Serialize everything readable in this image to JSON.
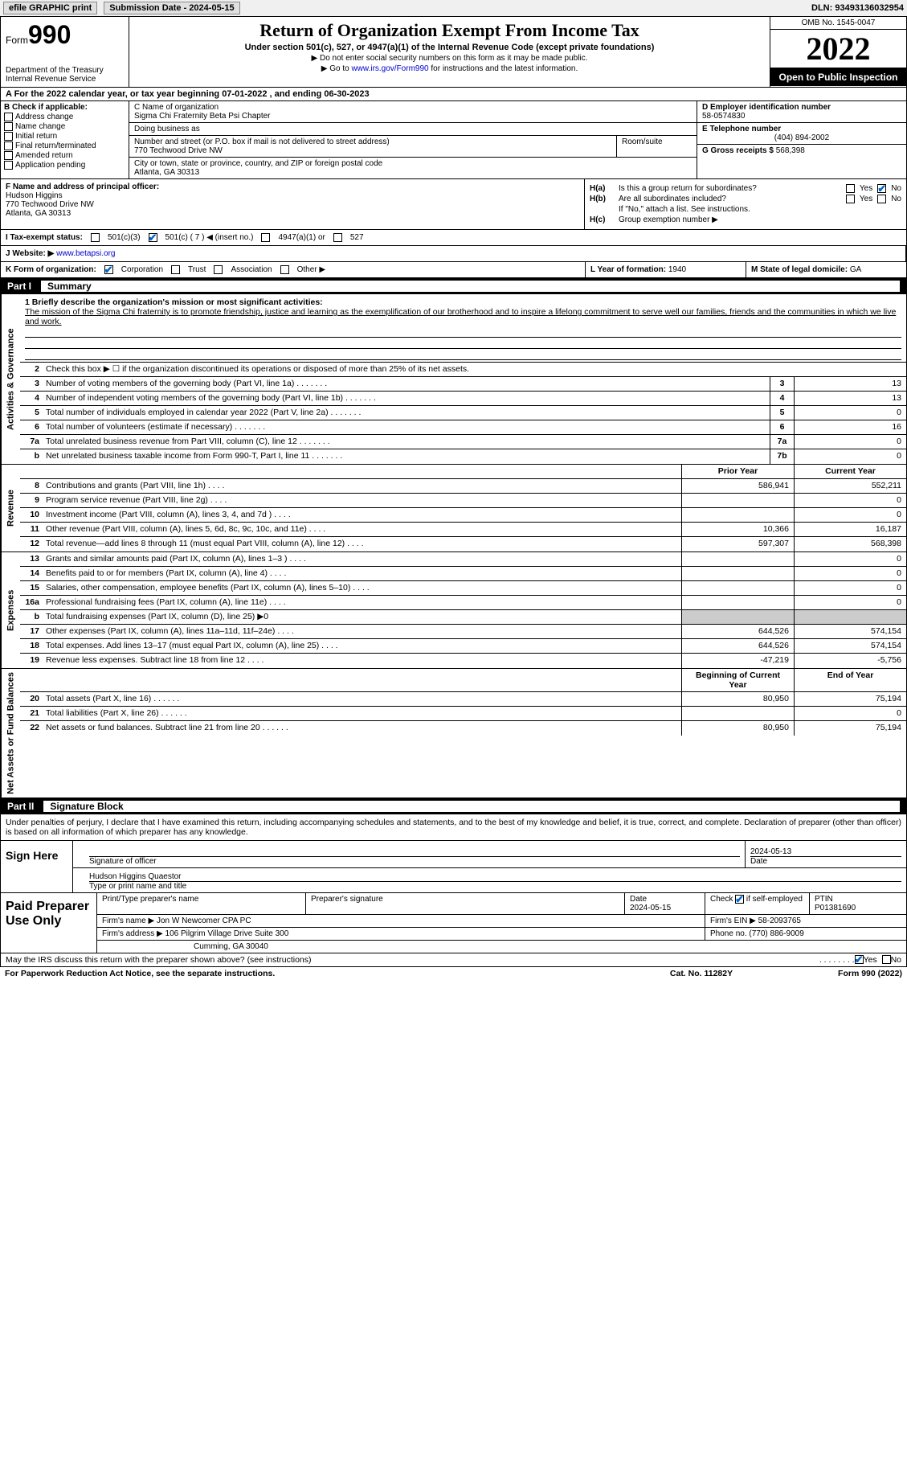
{
  "topbar": {
    "efile_label": "efile GRAPHIC print",
    "sub_date_label": "Submission Date - 2024-05-15",
    "dln_label": "DLN: 93493136032954"
  },
  "header": {
    "form_label": "Form",
    "form_number": "990",
    "dept": "Department of the Treasury\nInternal Revenue Service",
    "title": "Return of Organization Exempt From Income Tax",
    "subtitle": "Under section 501(c), 527, or 4947(a)(1) of the Internal Revenue Code (except private foundations)",
    "note1": "▶ Do not enter social security numbers on this form as it may be made public.",
    "note2_pre": "▶ Go to ",
    "note2_link": "www.irs.gov/Form990",
    "note2_post": " for instructions and the latest information.",
    "omb": "OMB No. 1545-0047",
    "year": "2022",
    "open": "Open to Public Inspection"
  },
  "row_a": "A For the 2022 calendar year, or tax year beginning 07-01-2022   , and ending 06-30-2023",
  "col_b": {
    "label": "B Check if applicable:",
    "items": [
      "Address change",
      "Name change",
      "Initial return",
      "Final return/terminated",
      "Amended return",
      "Application pending"
    ]
  },
  "col_c": {
    "name_lbl": "C Name of organization",
    "name": "Sigma Chi Fraternity Beta Psi Chapter",
    "dba_lbl": "Doing business as",
    "street_lbl": "Number and street (or P.O. box if mail is not delivered to street address)",
    "street": "770 Techwood Drive NW",
    "room_lbl": "Room/suite",
    "city_lbl": "City or town, state or province, country, and ZIP or foreign postal code",
    "city": "Atlanta, GA  30313"
  },
  "col_de": {
    "d_lbl": "D Employer identification number",
    "d_val": "58-0574830",
    "e_lbl": "E Telephone number",
    "e_val": "(404) 894-2002",
    "g_lbl": "G Gross receipts $",
    "g_val": "568,398"
  },
  "col_f": {
    "lbl": "F Name and address of principal officer:",
    "name": "Hudson Higgins",
    "street": "770 Techwood Drive NW",
    "city": "Atlanta, GA  30313"
  },
  "col_h": {
    "ha_lbl": "H(a)",
    "ha_q": "Is this a group return for subordinates?",
    "hb_lbl": "H(b)",
    "hb_q": "Are all subordinates included?",
    "hb_note": "If \"No,\" attach a list. See instructions.",
    "hc_lbl": "H(c)",
    "hc_q": "Group exemption number ▶",
    "yes": "Yes",
    "no": "No"
  },
  "row_i": {
    "lbl": "I    Tax-exempt status:",
    "o1": "501(c)(3)",
    "o2": "501(c) ( 7 ) ◀ (insert no.)",
    "o3": "4947(a)(1) or",
    "o4": "527"
  },
  "row_j": {
    "lbl": "J   Website: ▶",
    "val": " www.betapsi.org"
  },
  "row_k": {
    "lbl": "K Form of organization:",
    "o1": "Corporation",
    "o2": "Trust",
    "o3": "Association",
    "o4": "Other ▶",
    "l_lbl": "L Year of formation:",
    "l_val": "1940",
    "m_lbl": "M State of legal domicile:",
    "m_val": "GA"
  },
  "part1": {
    "pn": "Part I",
    "pt": "Summary"
  },
  "summary": {
    "line1_lbl": "1   Briefly describe the organization's mission or most significant activities:",
    "mission": "The mission of the Sigma Chi fraternity is to promote friendship, justice and learning as the exemplification of our brotherhood and to inspire a lifelong commitment to serve well our families, friends and the communities in which we live and work.",
    "line2": "Check this box ▶ ☐ if the organization discontinued its operations or disposed of more than 25% of its net assets.",
    "side_ag": "Activities & Governance",
    "side_rev": "Revenue",
    "side_exp": "Expenses",
    "side_na": "Net Assets or Fund Balances",
    "hdr_prior": "Prior Year",
    "hdr_curr": "Current Year",
    "hdr_beg": "Beginning of Current Year",
    "hdr_end": "End of Year",
    "lines_ag": [
      {
        "n": "3",
        "d": "Number of voting members of the governing body (Part VI, line 1a)",
        "box": "3",
        "v": "13"
      },
      {
        "n": "4",
        "d": "Number of independent voting members of the governing body (Part VI, line 1b)",
        "box": "4",
        "v": "13"
      },
      {
        "n": "5",
        "d": "Total number of individuals employed in calendar year 2022 (Part V, line 2a)",
        "box": "5",
        "v": "0"
      },
      {
        "n": "6",
        "d": "Total number of volunteers (estimate if necessary)",
        "box": "6",
        "v": "16"
      },
      {
        "n": "7a",
        "d": "Total unrelated business revenue from Part VIII, column (C), line 12",
        "box": "7a",
        "v": "0"
      },
      {
        "n": "b",
        "d": "Net unrelated business taxable income from Form 990-T, Part I, line 11",
        "box": "7b",
        "v": "0"
      }
    ],
    "lines_rev": [
      {
        "n": "8",
        "d": "Contributions and grants (Part VIII, line 1h)",
        "p": "586,941",
        "c": "552,211"
      },
      {
        "n": "9",
        "d": "Program service revenue (Part VIII, line 2g)",
        "p": "",
        "c": "0"
      },
      {
        "n": "10",
        "d": "Investment income (Part VIII, column (A), lines 3, 4, and 7d )",
        "p": "",
        "c": "0"
      },
      {
        "n": "11",
        "d": "Other revenue (Part VIII, column (A), lines 5, 6d, 8c, 9c, 10c, and 11e)",
        "p": "10,366",
        "c": "16,187"
      },
      {
        "n": "12",
        "d": "Total revenue—add lines 8 through 11 (must equal Part VIII, column (A), line 12)",
        "p": "597,307",
        "c": "568,398"
      }
    ],
    "lines_exp": [
      {
        "n": "13",
        "d": "Grants and similar amounts paid (Part IX, column (A), lines 1–3 )",
        "p": "",
        "c": "0"
      },
      {
        "n": "14",
        "d": "Benefits paid to or for members (Part IX, column (A), line 4)",
        "p": "",
        "c": "0"
      },
      {
        "n": "15",
        "d": "Salaries, other compensation, employee benefits (Part IX, column (A), lines 5–10)",
        "p": "",
        "c": "0"
      },
      {
        "n": "16a",
        "d": "Professional fundraising fees (Part IX, column (A), line 11e)",
        "p": "",
        "c": "0"
      },
      {
        "n": "b",
        "d": "Total fundraising expenses (Part IX, column (D), line 25) ▶0",
        "shade": true
      },
      {
        "n": "17",
        "d": "Other expenses (Part IX, column (A), lines 11a–11d, 11f–24e)",
        "p": "644,526",
        "c": "574,154"
      },
      {
        "n": "18",
        "d": "Total expenses. Add lines 13–17 (must equal Part IX, column (A), line 25)",
        "p": "644,526",
        "c": "574,154"
      },
      {
        "n": "19",
        "d": "Revenue less expenses. Subtract line 18 from line 12",
        "p": "-47,219",
        "c": "-5,756"
      }
    ],
    "lines_na": [
      {
        "n": "20",
        "d": "Total assets (Part X, line 16)",
        "p": "80,950",
        "c": "75,194"
      },
      {
        "n": "21",
        "d": "Total liabilities (Part X, line 26)",
        "p": "",
        "c": "0"
      },
      {
        "n": "22",
        "d": "Net assets or fund balances. Subtract line 21 from line 20",
        "p": "80,950",
        "c": "75,194"
      }
    ]
  },
  "part2": {
    "pn": "Part II",
    "pt": "Signature Block"
  },
  "sig": {
    "intro": "Under penalties of perjury, I declare that I have examined this return, including accompanying schedules and statements, and to the best of my knowledge and belief, it is true, correct, and complete. Declaration of preparer (other than officer) is based on all information of which preparer has any knowledge.",
    "sign_here": "Sign Here",
    "sig_officer": "Signature of officer",
    "sig_date": "2024-05-13",
    "date_lbl": "Date",
    "name_title": "Hudson Higgins  Quaestor",
    "name_lbl": "Type or print name and title"
  },
  "prep": {
    "title": "Paid Preparer Use Only",
    "r1": {
      "c1": "Print/Type preparer's name",
      "c2": "Preparer's signature",
      "c3_lbl": "Date",
      "c3": "2024-05-15",
      "c4": "Check ☑ if self-employed",
      "c5_lbl": "PTIN",
      "c5": "P01381690"
    },
    "r2": {
      "lbl": "Firm's name    ▶",
      "val": "Jon W Newcomer CPA PC",
      "ein_lbl": "Firm's EIN ▶",
      "ein": "58-2093765"
    },
    "r3": {
      "lbl": "Firm's address ▶",
      "val": "106 Pilgrim Village Drive Suite 300",
      "ph_lbl": "Phone no.",
      "ph": "(770) 886-9009"
    },
    "r4": {
      "val": "Cumming, GA  30040"
    }
  },
  "discuss": {
    "q": "May the IRS discuss this return with the preparer shown above? (see instructions)",
    "yes": "Yes",
    "no": "No"
  },
  "footer": {
    "left": "For Paperwork Reduction Act Notice, see the separate instructions.",
    "mid": "Cat. No. 11282Y",
    "right": "Form 990 (2022)"
  }
}
